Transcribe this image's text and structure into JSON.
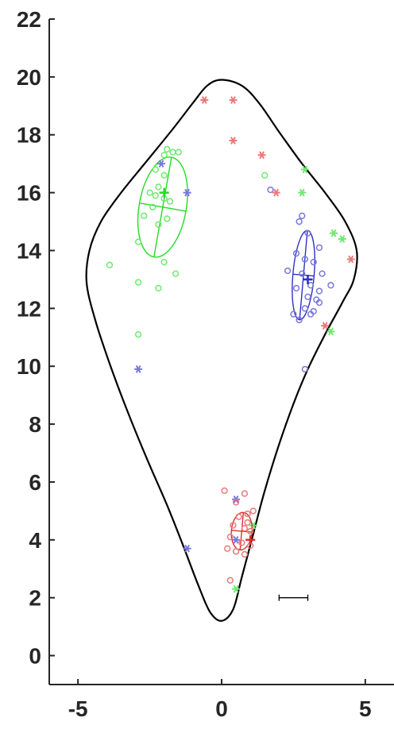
{
  "chart_data": {
    "type": "scatter",
    "title": "",
    "xlabel": "",
    "ylabel": "",
    "xlim": [
      -6,
      6
    ],
    "ylim": [
      -1,
      22
    ],
    "xticks": [
      -5,
      0,
      5
    ],
    "yticks": [
      0,
      2,
      4,
      6,
      8,
      10,
      12,
      14,
      16,
      18,
      20,
      22
    ],
    "xtick_labels": [
      "-5",
      "0",
      "5"
    ],
    "ytick_labels": [
      "0",
      "2",
      "4",
      "6",
      "8",
      "10",
      "12",
      "14",
      "16",
      "18",
      "20",
      "22"
    ],
    "grid": false,
    "legend": "none",
    "boundary": [
      [
        0,
        19.9
      ],
      [
        0.7,
        19.7
      ],
      [
        1.3,
        19.1
      ],
      [
        2.0,
        18.1
      ],
      [
        2.8,
        17.0
      ],
      [
        3.6,
        16.0
      ],
      [
        4.3,
        15.0
      ],
      [
        4.7,
        14.0
      ],
      [
        4.6,
        13.0
      ],
      [
        4.2,
        12.2
      ],
      [
        3.6,
        11.1
      ],
      [
        3.0,
        9.9
      ],
      [
        2.5,
        8.7
      ],
      [
        2.0,
        7.3
      ],
      [
        1.5,
        5.7
      ],
      [
        1.1,
        4.2
      ],
      [
        0.7,
        2.7
      ],
      [
        0.4,
        1.6
      ],
      [
        0,
        1.2
      ],
      [
        -0.4,
        1.5
      ],
      [
        -0.8,
        2.4
      ],
      [
        -1.3,
        3.7
      ],
      [
        -1.9,
        5.2
      ],
      [
        -2.6,
        6.8
      ],
      [
        -3.3,
        8.5
      ],
      [
        -3.9,
        10.1
      ],
      [
        -4.4,
        11.6
      ],
      [
        -4.7,
        12.9
      ],
      [
        -4.6,
        14.0
      ],
      [
        -4.2,
        15.0
      ],
      [
        -3.5,
        16.0
      ],
      [
        -2.6,
        17.1
      ],
      [
        -1.7,
        18.2
      ],
      [
        -1.0,
        19.1
      ],
      [
        -0.5,
        19.7
      ]
    ],
    "series": [
      {
        "color": "#22dd22",
        "circles": [
          [
            -2.3,
            16.8
          ],
          [
            -2.0,
            16.6
          ],
          [
            -1.7,
            17.4
          ],
          [
            -1.9,
            17.5
          ],
          [
            -2.0,
            17.3
          ],
          [
            -1.5,
            17.4
          ],
          [
            -2.5,
            16.0
          ],
          [
            -2.3,
            15.9
          ],
          [
            -2.0,
            15.8
          ],
          [
            -1.8,
            15.7
          ],
          [
            -2.4,
            15.5
          ],
          [
            -2.7,
            15.2
          ],
          [
            -2.2,
            14.9
          ],
          [
            -1.9,
            15.1
          ],
          [
            -2.0,
            13.6
          ],
          [
            -1.6,
            13.2
          ],
          [
            -2.2,
            12.7
          ],
          [
            -2.9,
            12.9
          ],
          [
            -2.9,
            14.3
          ],
          [
            -3.9,
            13.5
          ],
          [
            -2.9,
            11.1
          ],
          [
            1.5,
            16.6
          ],
          [
            -2.2,
            16.2
          ]
        ],
        "stars": [
          [
            3.9,
            14.6
          ],
          [
            4.2,
            14.4
          ],
          [
            2.9,
            16.8
          ],
          [
            2.8,
            16.0
          ],
          [
            3.8,
            11.2
          ],
          [
            0.5,
            2.3
          ],
          [
            1.1,
            4.5
          ]
        ],
        "mean": [
          -2.0,
          16.0
        ],
        "ellipse": {
          "cx": -2.05,
          "cy": 15.5,
          "rx": 0.82,
          "ry": 1.75,
          "angle_deg": 10
        }
      },
      {
        "color": "#3030c8",
        "circles": [
          [
            2.3,
            13.3
          ],
          [
            2.6,
            13.9
          ],
          [
            2.9,
            13.7
          ],
          [
            3.2,
            13.6
          ],
          [
            3.5,
            13.2
          ],
          [
            2.8,
            13.2
          ],
          [
            3.1,
            12.8
          ],
          [
            3.4,
            12.6
          ],
          [
            3.0,
            12.4
          ],
          [
            3.3,
            12.3
          ],
          [
            2.6,
            12.7
          ],
          [
            2.9,
            12.0
          ],
          [
            3.2,
            11.9
          ],
          [
            2.7,
            11.6
          ],
          [
            3.1,
            11.8
          ],
          [
            2.5,
            11.8
          ],
          [
            3.8,
            12.8
          ],
          [
            3.4,
            14.1
          ],
          [
            2.8,
            15.2
          ],
          [
            2.7,
            15.0
          ],
          [
            3.0,
            14.6
          ],
          [
            2.9,
            9.9
          ],
          [
            3.4,
            12.2
          ],
          [
            1.7,
            16.1
          ]
        ],
        "stars": [
          [
            -2.1,
            17.0
          ],
          [
            -1.2,
            16.0
          ],
          [
            -2.9,
            9.9
          ],
          [
            -1.2,
            3.7
          ],
          [
            0.5,
            5.4
          ],
          [
            0.5,
            4.0
          ]
        ],
        "mean": [
          3.0,
          13.0
        ],
        "ellipse": {
          "cx": 2.85,
          "cy": 13.15,
          "rx": 0.37,
          "ry": 1.55,
          "angle_deg": 5
        }
      },
      {
        "color": "#e03030",
        "circles": [
          [
            0.1,
            5.7
          ],
          [
            0.5,
            5.3
          ],
          [
            0.8,
            5.6
          ],
          [
            1.1,
            5.0
          ],
          [
            0.9,
            4.9
          ],
          [
            0.6,
            4.8
          ],
          [
            0.4,
            4.5
          ],
          [
            0.8,
            4.4
          ],
          [
            1.0,
            4.3
          ],
          [
            0.3,
            4.1
          ],
          [
            0.7,
            3.9
          ],
          [
            1.0,
            3.8
          ],
          [
            0.5,
            3.6
          ],
          [
            0.8,
            3.5
          ],
          [
            0.2,
            3.7
          ],
          [
            0.3,
            2.6
          ],
          [
            0.9,
            4.6
          ]
        ],
        "stars": [
          [
            -0.6,
            19.2
          ],
          [
            0.4,
            19.2
          ],
          [
            0.4,
            17.8
          ],
          [
            1.4,
            17.3
          ],
          [
            1.9,
            16.0
          ],
          [
            4.5,
            13.7
          ],
          [
            3.6,
            11.4
          ]
        ],
        "mean": [
          1.0,
          4.0
        ],
        "ellipse": {
          "cx": 0.7,
          "cy": 4.3,
          "rx": 0.36,
          "ry": 0.65,
          "angle_deg": 5
        }
      }
    ],
    "scale_bar": {
      "x1": 2.0,
      "x2": 3.0,
      "y": 2.0
    }
  }
}
